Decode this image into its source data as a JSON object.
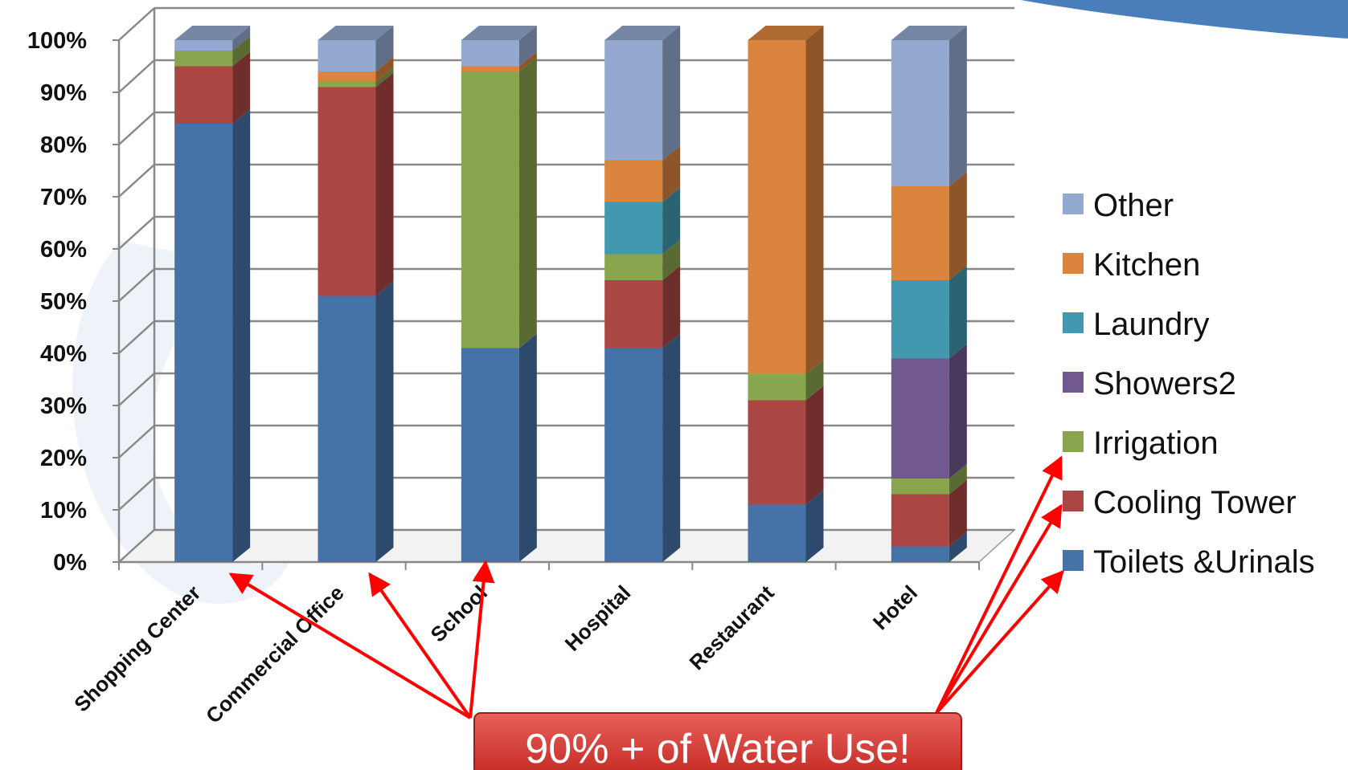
{
  "chart_data": {
    "type": "bar",
    "stacked": true,
    "title": "",
    "xlabel": "",
    "ylabel": "",
    "ylim": [
      0,
      100
    ],
    "yticks": [
      "0%",
      "10%",
      "20%",
      "30%",
      "40%",
      "50%",
      "60%",
      "70%",
      "80%",
      "90%",
      "100%"
    ],
    "grid": true,
    "legend_position": "right",
    "categories": [
      "Shopping Center",
      "Commercial Office",
      "School",
      "Hospital",
      "Restaurant",
      "Hotel"
    ],
    "series": [
      {
        "name": "Toilets &Urinals",
        "color": "#4572a7",
        "values": [
          84,
          51,
          41,
          41,
          11,
          3
        ]
      },
      {
        "name": "Cooling Tower",
        "color": "#aa4643",
        "values": [
          11,
          40,
          0,
          13,
          20,
          10
        ]
      },
      {
        "name": "Irrigation",
        "color": "#89a54e",
        "values": [
          3,
          1,
          53,
          5,
          5,
          3
        ]
      },
      {
        "name": "Showers2",
        "color": "#71588f",
        "values": [
          0,
          0,
          0,
          0,
          0,
          23
        ]
      },
      {
        "name": "Laundry",
        "color": "#4198af",
        "values": [
          0,
          0,
          0,
          10,
          0,
          15
        ]
      },
      {
        "name": "Kitchen",
        "color": "#db843d",
        "values": [
          0,
          2,
          1,
          8,
          64,
          18
        ]
      },
      {
        "name": "Other",
        "color": "#93a9cf",
        "values": [
          2,
          6,
          5,
          23,
          0,
          28
        ]
      }
    ],
    "annotation": "90% + of Water Use!"
  }
}
